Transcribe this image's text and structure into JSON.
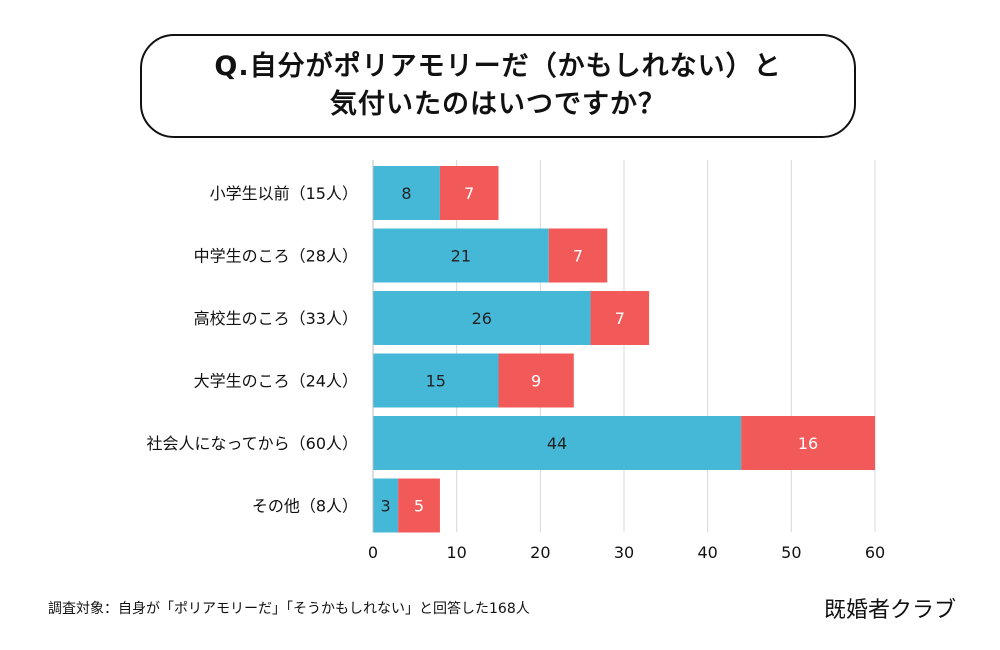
{
  "title": {
    "line1": "Q.自分がポリアモリーだ（かもしれない）と",
    "line2": "気付いたのはいつですか？"
  },
  "footnote": "調査対象：自身が「ポリアモリーだ」「そうかもしれない」と回答した168人",
  "brand": "既婚者クラブ",
  "colors": {
    "series1": "#45b8d8",
    "series2": "#f25a5a",
    "grid": "#d8d8d8",
    "bar_label_dark": "#222222",
    "bar_label_light": "#ffffff"
  },
  "chart_data": {
    "type": "bar",
    "orientation": "horizontal",
    "stacked": true,
    "categories": [
      "小学生以前（15人）",
      "中学生のころ（28人）",
      "高校生のころ（33人）",
      "大学生のころ（24人）",
      "社会人になってから（60人）",
      "その他（8人）"
    ],
    "series": [
      {
        "values": [
          8,
          21,
          26,
          15,
          44,
          3
        ]
      },
      {
        "values": [
          7,
          7,
          7,
          9,
          16,
          5
        ]
      }
    ],
    "xlim": [
      0,
      60
    ],
    "xticks": [
      0,
      10,
      20,
      30,
      40,
      50,
      60
    ],
    "grid": true,
    "legend": "none"
  }
}
